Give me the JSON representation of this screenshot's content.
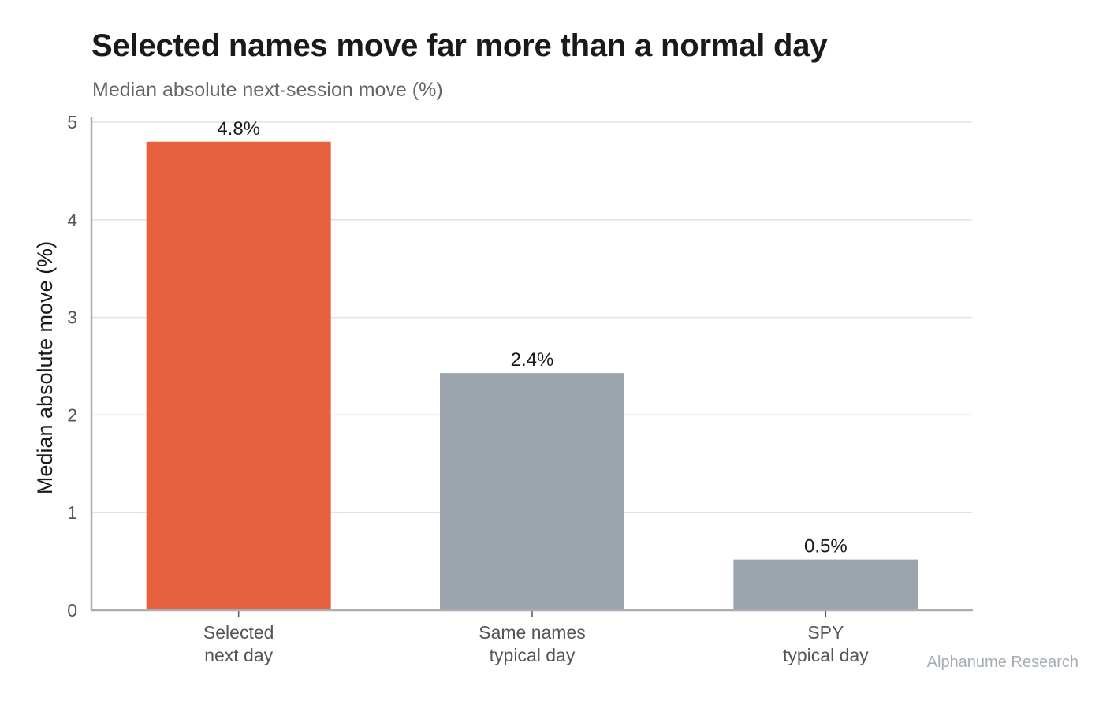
{
  "chart_data": {
    "type": "bar",
    "title": "Selected names move far more than a normal day",
    "subtitle": "Median absolute next-session move (%)",
    "ylabel": "Median absolute move (%)",
    "xlabel": "",
    "ylim": [
      0,
      5
    ],
    "yticks": [
      "0",
      "1",
      "2",
      "3",
      "4",
      "5"
    ],
    "grid": true,
    "categories": [
      [
        "Selected",
        "next day"
      ],
      [
        "Same names",
        "typical day"
      ],
      [
        "SPY",
        "typical day"
      ]
    ],
    "values": [
      4.8,
      2.43,
      0.52
    ],
    "data_labels": [
      "4.8%",
      "2.4%",
      "0.5%"
    ],
    "colors": [
      "#e8613f",
      "#9ca5ad",
      "#9ca5ad"
    ]
  },
  "credit": "Alphanume Research",
  "style": {
    "grid_color": "#e3e3e3",
    "axis_color": "#a9aeb3",
    "tick_text_color": "#555555",
    "label_text_color": "#1a1a1a"
  }
}
